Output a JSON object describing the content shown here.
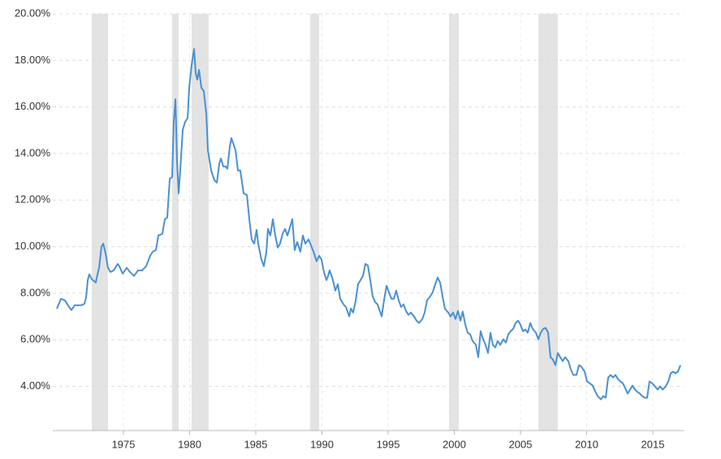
{
  "chart_data": {
    "type": "line",
    "color": "#4a90d2",
    "recession_color": "#e3e3e3",
    "grid": true,
    "xlim": [
      1969.66,
      2017.33
    ],
    "ylim": [
      2.1,
      20
    ],
    "xticks": [
      1975,
      1980,
      1985,
      1990,
      1995,
      2000,
      2005,
      2010,
      2015
    ],
    "yticks": [
      {
        "value": 4,
        "label": "4.00%"
      },
      {
        "value": 6,
        "label": "6.00%"
      },
      {
        "value": 8,
        "label": "8.00%"
      },
      {
        "value": 10,
        "label": "10.00%"
      },
      {
        "value": 12,
        "label": "12.00%"
      },
      {
        "value": 14,
        "label": "14.00%"
      },
      {
        "value": 16,
        "label": "16.00%"
      },
      {
        "value": 18,
        "label": "18.00%"
      },
      {
        "value": 20,
        "label": "20.00%"
      }
    ],
    "recessions": [
      [
        1972.61,
        1973.83
      ],
      [
        1978.68,
        1979.17
      ],
      [
        1980.15,
        1981.44
      ],
      [
        1989.11,
        1989.79
      ],
      [
        1999.6,
        2000.34
      ],
      [
        2006.35,
        2007.82
      ]
    ],
    "x": [
      1969.97,
      1970.28,
      1970.58,
      1970.89,
      1971.07,
      1971.32,
      1971.81,
      1972.06,
      1972.18,
      1972.3,
      1972.42,
      1972.61,
      1972.91,
      1973.04,
      1973.16,
      1973.34,
      1973.47,
      1973.65,
      1973.83,
      1974.02,
      1974.26,
      1974.57,
      1974.75,
      1974.94,
      1975.25,
      1975.49,
      1975.8,
      1976.1,
      1976.41,
      1976.72,
      1977.02,
      1977.21,
      1977.45,
      1977.64,
      1977.94,
      1978.13,
      1978.31,
      1978.5,
      1978.68,
      1978.8,
      1978.93,
      1979.05,
      1979.17,
      1979.29,
      1979.48,
      1979.66,
      1979.85,
      1979.97,
      1980.15,
      1980.34,
      1980.46,
      1980.58,
      1980.71,
      1980.89,
      1981.07,
      1981.26,
      1981.38,
      1981.63,
      1981.87,
      1982.06,
      1982.24,
      1982.36,
      1982.55,
      1982.73,
      1982.85,
      1983.04,
      1983.16,
      1983.47,
      1983.65,
      1983.83,
      1984.08,
      1984.33,
      1984.51,
      1984.69,
      1984.88,
      1985.06,
      1985.18,
      1985.43,
      1985.61,
      1985.8,
      1985.92,
      1986.1,
      1986.29,
      1986.47,
      1986.66,
      1986.84,
      1987.02,
      1987.21,
      1987.39,
      1987.58,
      1987.76,
      1987.94,
      1988.13,
      1988.37,
      1988.56,
      1988.74,
      1988.99,
      1989.17,
      1989.36,
      1989.6,
      1989.79,
      1989.97,
      1990.15,
      1990.34,
      1990.46,
      1990.58,
      1990.83,
      1991.01,
      1991.2,
      1991.38,
      1991.63,
      1991.81,
      1992.06,
      1992.18,
      1992.36,
      1992.55,
      1992.73,
      1992.91,
      1993.1,
      1993.28,
      1993.47,
      1993.65,
      1993.83,
      1994.02,
      1994.2,
      1994.51,
      1994.69,
      1994.88,
      1995.06,
      1995.25,
      1995.43,
      1995.61,
      1995.8,
      1995.98,
      1996.17,
      1996.35,
      1996.53,
      1996.72,
      1996.96,
      1997.15,
      1997.33,
      1997.58,
      1997.76,
      1997.94,
      1998.19,
      1998.37,
      1998.56,
      1998.74,
      1998.93,
      1999.11,
      1999.29,
      1999.54,
      1999.72,
      1999.91,
      2000.09,
      2000.28,
      2000.46,
      2000.64,
      2000.83,
      2001.01,
      2001.2,
      2001.38,
      2001.63,
      2001.81,
      2001.99,
      2002.18,
      2002.36,
      2002.55,
      2002.73,
      2002.91,
      2003.1,
      2003.28,
      2003.47,
      2003.71,
      2003.9,
      2004.08,
      2004.26,
      2004.45,
      2004.63,
      2004.82,
      2005.0,
      2005.18,
      2005.37,
      2005.55,
      2005.74,
      2005.92,
      2006.17,
      2006.35,
      2006.53,
      2006.72,
      2006.9,
      2007.09,
      2007.27,
      2007.45,
      2007.64,
      2007.82,
      2008.01,
      2008.19,
      2008.37,
      2008.62,
      2008.8,
      2008.99,
      2009.23,
      2009.42,
      2009.6,
      2009.85,
      2010.03,
      2010.21,
      2010.46,
      2010.64,
      2010.83,
      2011.07,
      2011.26,
      2011.44,
      2011.63,
      2011.81,
      2011.99,
      2012.18,
      2012.36,
      2012.55,
      2012.73,
      2012.91,
      2013.1,
      2013.28,
      2013.47,
      2013.65,
      2013.83,
      2014.02,
      2014.2,
      2014.39,
      2014.57,
      2014.75,
      2014.94,
      2015.12,
      2015.37,
      2015.55,
      2015.74,
      2015.98,
      2016.17,
      2016.35,
      2016.53,
      2016.72,
      2016.9,
      2017.09
    ],
    "values": [
      7.34,
      7.76,
      7.69,
      7.41,
      7.28,
      7.48,
      7.48,
      7.55,
      7.83,
      8.56,
      8.81,
      8.6,
      8.46,
      8.81,
      9.09,
      9.99,
      10.13,
      9.71,
      9.09,
      8.91,
      8.98,
      9.26,
      9.09,
      8.84,
      9.09,
      8.91,
      8.74,
      8.98,
      8.98,
      9.16,
      9.61,
      9.78,
      9.85,
      10.48,
      10.55,
      11.18,
      11.25,
      12.92,
      12.99,
      15.36,
      16.33,
      13.62,
      12.29,
      13.27,
      15.01,
      15.36,
      15.53,
      16.82,
      17.8,
      18.49,
      17.45,
      17.17,
      17.59,
      16.82,
      16.68,
      15.71,
      14.14,
      13.27,
      12.85,
      12.75,
      13.55,
      13.79,
      13.44,
      13.44,
      13.34,
      14.31,
      14.66,
      14.14,
      13.27,
      13.27,
      12.29,
      12.22,
      11.18,
      10.31,
      10.13,
      10.72,
      10.13,
      9.44,
      9.16,
      9.78,
      10.76,
      10.48,
      11.18,
      10.48,
      9.96,
      10.13,
      10.55,
      10.76,
      10.48,
      10.83,
      11.18,
      9.85,
      10.2,
      9.78,
      10.48,
      10.13,
      10.31,
      10.06,
      9.78,
      9.37,
      9.61,
      9.44,
      8.91,
      8.56,
      8.74,
      8.98,
      8.56,
      8.11,
      8.39,
      7.76,
      7.52,
      7.41,
      7.0,
      7.34,
      7.17,
      7.69,
      8.39,
      8.56,
      8.74,
      9.26,
      9.19,
      8.56,
      7.87,
      7.62,
      7.52,
      7.0,
      7.69,
      8.32,
      8.04,
      7.76,
      7.76,
      8.11,
      7.69,
      7.41,
      7.52,
      7.24,
      7.07,
      7.17,
      7.0,
      6.82,
      6.72,
      6.89,
      7.17,
      7.69,
      7.87,
      8.04,
      8.39,
      8.67,
      8.46,
      7.87,
      7.34,
      7.17,
      7.0,
      7.17,
      6.89,
      7.24,
      6.82,
      7.21,
      6.65,
      6.3,
      6.23,
      5.95,
      5.78,
      5.25,
      6.37,
      6.02,
      5.78,
      5.43,
      6.3,
      5.78,
      5.67,
      5.95,
      5.78,
      6.02,
      5.88,
      6.23,
      6.37,
      6.47,
      6.72,
      6.82,
      6.65,
      6.37,
      6.44,
      6.3,
      6.72,
      6.47,
      6.3,
      6.02,
      6.3,
      6.47,
      6.51,
      6.3,
      5.25,
      5.15,
      4.91,
      5.43,
      5.25,
      5.08,
      5.25,
      5.08,
      4.73,
      4.49,
      4.49,
      4.91,
      4.84,
      4.63,
      4.21,
      4.14,
      4.03,
      3.79,
      3.58,
      3.44,
      3.58,
      3.51,
      4.38,
      4.49,
      4.38,
      4.49,
      4.31,
      4.21,
      4.14,
      3.93,
      3.69,
      3.86,
      4.03,
      3.86,
      3.76,
      3.69,
      3.58,
      3.51,
      3.51,
      4.21,
      4.14,
      4.03,
      3.86,
      4.0,
      3.86,
      4.0,
      4.21,
      4.56,
      4.63,
      4.56,
      4.63,
      4.91
    ]
  }
}
